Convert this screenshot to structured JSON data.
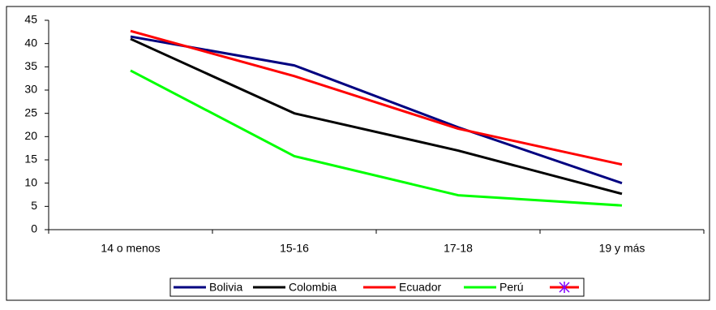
{
  "chart_data": {
    "type": "line",
    "categories": [
      "14 o menos",
      "15-16",
      "17-18",
      "19 y más"
    ],
    "series": [
      {
        "name": "Bolivia",
        "color": "#000080",
        "values": [
          41.5,
          35.3,
          22,
          10
        ]
      },
      {
        "name": "Colombia",
        "color": "#000000",
        "values": [
          41,
          25,
          17,
          7.7
        ]
      },
      {
        "name": "Ecuador",
        "color": "#ff0000",
        "values": [
          42.7,
          33,
          21.7,
          14
        ]
      },
      {
        "name": "Perú",
        "color": "#00ff00",
        "values": [
          34.2,
          15.8,
          7.4,
          5.2
        ]
      }
    ],
    "ylim": [
      0,
      45
    ],
    "yticks": [
      0,
      5,
      10,
      15,
      20,
      25,
      30,
      35,
      40,
      45
    ],
    "grid": false
  }
}
